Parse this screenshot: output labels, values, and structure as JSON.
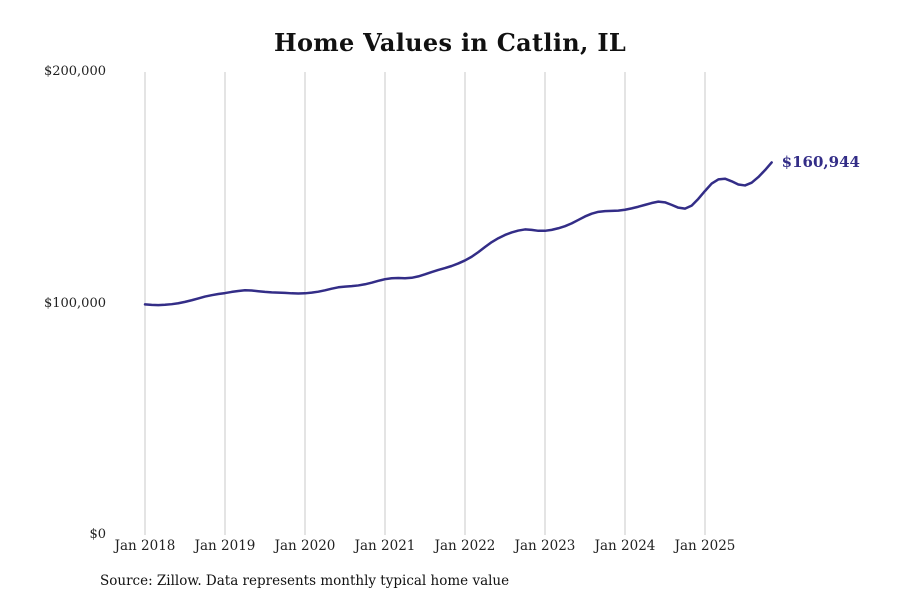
{
  "chart_data": {
    "type": "line",
    "title": "Home Values in Catlin, IL",
    "source": "Source: Zillow. Data represents monthly typical home value",
    "end_label": "$160,944",
    "latest_value": 160944,
    "line_color": "#332d87",
    "grid_color": "#c9c9c9",
    "text_color": "#222222",
    "x_start": "2018-01",
    "x_frequency": "monthly",
    "ylim": [
      0,
      200000
    ],
    "grid": "vertical-only",
    "legend": "none",
    "y_ticks": [
      {
        "label": "$0",
        "value": 0
      },
      {
        "label": "$100,000",
        "value": 100000
      },
      {
        "label": "$200,000",
        "value": 200000
      }
    ],
    "x_ticks": [
      {
        "label": "Jan 2018",
        "month_index": 0
      },
      {
        "label": "Jan 2019",
        "month_index": 12
      },
      {
        "label": "Jan 2020",
        "month_index": 24
      },
      {
        "label": "Jan 2021",
        "month_index": 36
      },
      {
        "label": "Jan 2022",
        "month_index": 48
      },
      {
        "label": "Jan 2023",
        "month_index": 60
      },
      {
        "label": "Jan 2024",
        "month_index": 72
      },
      {
        "label": "Jan 2025",
        "month_index": 84
      }
    ],
    "values": [
      99600,
      99400,
      99300,
      99450,
      99700,
      100100,
      100700,
      101400,
      102200,
      103000,
      103600,
      104100,
      104500,
      105000,
      105400,
      105700,
      105600,
      105300,
      105000,
      104800,
      104700,
      104600,
      104400,
      104300,
      104400,
      104700,
      105100,
      105700,
      106400,
      107000,
      107300,
      107500,
      107800,
      108300,
      109000,
      109800,
      110500,
      110900,
      111000,
      110900,
      111100,
      111700,
      112600,
      113600,
      114500,
      115300,
      116200,
      117300,
      118600,
      120200,
      122200,
      124400,
      126500,
      128200,
      129600,
      130700,
      131500,
      132000,
      131800,
      131400,
      131400,
      131800,
      132500,
      133400,
      134600,
      136100,
      137600,
      138800,
      139600,
      139900,
      140000,
      140100,
      140500,
      141100,
      141800,
      142600,
      143400,
      144000,
      143700,
      142600,
      141400,
      141000,
      142300,
      145200,
      148600,
      151800,
      153600,
      153900,
      152800,
      151400,
      151000,
      152200,
      154600,
      157600,
      160944
    ]
  }
}
